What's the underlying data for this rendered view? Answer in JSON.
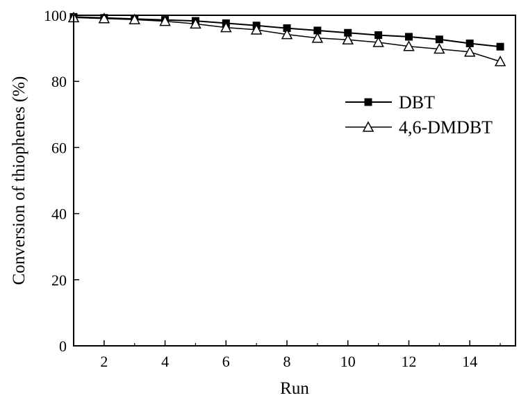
{
  "chart_data": {
    "type": "line",
    "title": "",
    "xlabel": "Run",
    "ylabel": "Conversion of thiophenes (%)",
    "xlim": [
      1,
      15.5
    ],
    "ylim": [
      0,
      100
    ],
    "x_ticks": [
      2,
      4,
      6,
      8,
      10,
      12,
      14
    ],
    "y_ticks": [
      0,
      20,
      40,
      60,
      80,
      100
    ],
    "grid": false,
    "legend_position": "right",
    "x": [
      1,
      2,
      3,
      4,
      5,
      6,
      7,
      8,
      9,
      10,
      11,
      12,
      13,
      14,
      15
    ],
    "series": [
      {
        "name": "DBT",
        "marker": "filled-square",
        "color": "#000000",
        "values": [
          99.5,
          99.2,
          98.9,
          98.6,
          98.3,
          97.6,
          96.9,
          96.1,
          95.4,
          94.7,
          94.0,
          93.5,
          92.7,
          91.5,
          90.5
        ]
      },
      {
        "name": "4,6-DMDBT",
        "marker": "open-triangle",
        "color": "#000000",
        "values": [
          99.3,
          99.0,
          98.7,
          98.2,
          97.4,
          96.3,
          95.6,
          94.2,
          93.1,
          92.6,
          91.8,
          90.6,
          89.8,
          88.9,
          86.0
        ]
      }
    ]
  }
}
